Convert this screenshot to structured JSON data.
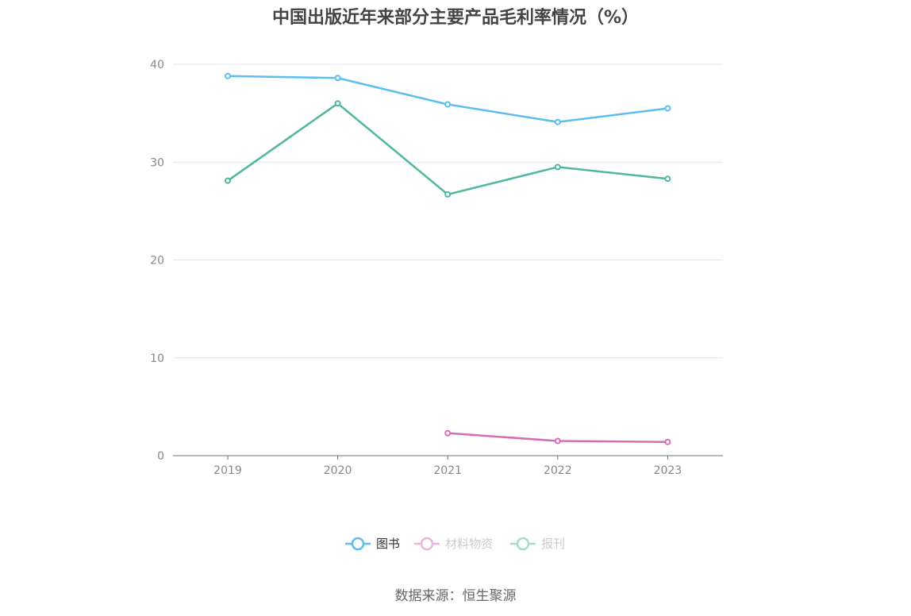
{
  "chart_data": {
    "type": "line",
    "title": "中国出版近年来部分主要产品毛利率情况（%）",
    "xlabel": "",
    "ylabel": "",
    "categories": [
      "2019",
      "2020",
      "2021",
      "2022",
      "2023"
    ],
    "ylim": [
      0,
      40
    ],
    "yticks": [
      0,
      10,
      20,
      30,
      40
    ],
    "grid": true,
    "legend_position": "bottom",
    "series": [
      {
        "name": "图书",
        "color": "#5bbdf0",
        "values": [
          38.8,
          38.6,
          35.9,
          34.1,
          35.5
        ]
      },
      {
        "name": "材料物资",
        "color": "#d86cb4",
        "values": [
          null,
          null,
          2.3,
          1.5,
          1.4
        ]
      },
      {
        "name": "报刊",
        "color": "#4fb6a0",
        "values": [
          28.1,
          36.0,
          26.7,
          29.5,
          28.3
        ]
      }
    ],
    "legend_active": [
      true,
      false,
      false
    ]
  },
  "source": "数据来源：恒生聚源"
}
